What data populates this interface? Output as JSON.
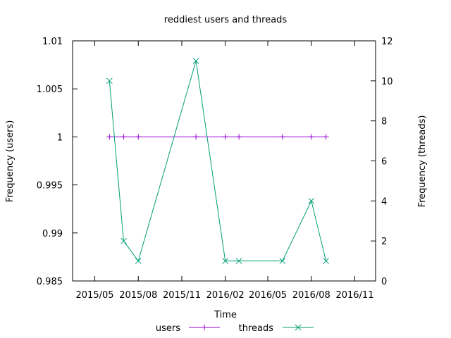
{
  "chart_data": {
    "type": "line",
    "title": "reddiest users and threads",
    "xlabel": "Time",
    "ylabel": "Frequency (users)",
    "y2label": "Frequency (threads)",
    "xlim": [
      "2015-03-15",
      "2016-12-15"
    ],
    "ylim": [
      0.985,
      1.01
    ],
    "y2lim": [
      0,
      12
    ],
    "xticks": [
      "2015/05",
      "2015/08",
      "2015/11",
      "2016/02",
      "2016/05",
      "2016/08",
      "2016/11"
    ],
    "xtick_dates": [
      "2015-05-01",
      "2015-08-01",
      "2015-11-01",
      "2016-02-01",
      "2016-05-01",
      "2016-08-01",
      "2016-11-01"
    ],
    "yticks": [
      "0.985",
      "0.99",
      "0.995",
      "1",
      "1.005",
      "1.01"
    ],
    "y2ticks": [
      "0",
      "2",
      "4",
      "6",
      "8",
      "10",
      "12"
    ],
    "legend_position": "bottom",
    "series": [
      {
        "name": "users",
        "axis": "y1",
        "color": "#9400d3",
        "marker": "plus",
        "x": [
          "2015-06-01",
          "2015-07-01",
          "2015-08-01",
          "2015-12-01",
          "2016-02-01",
          "2016-03-01",
          "2016-06-01",
          "2016-08-01",
          "2016-09-01"
        ],
        "y": [
          1,
          1,
          1,
          1,
          1,
          1,
          1,
          1,
          1
        ]
      },
      {
        "name": "threads",
        "axis": "y2",
        "color": "#009e73",
        "marker": "cross",
        "x": [
          "2015-06-01",
          "2015-07-01",
          "2015-08-01",
          "2015-12-01",
          "2016-02-01",
          "2016-03-01",
          "2016-06-01",
          "2016-08-01",
          "2016-09-01"
        ],
        "y": [
          10,
          2,
          1,
          11,
          1,
          1,
          1,
          4,
          1
        ]
      }
    ]
  }
}
